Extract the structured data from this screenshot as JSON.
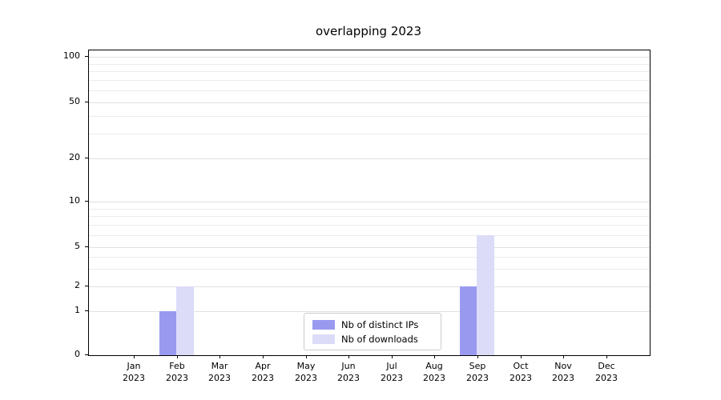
{
  "chart_data": {
    "type": "bar",
    "title": "overlapping 2023",
    "bar_style": "overlapping",
    "months": [
      "Jan",
      "Feb",
      "Mar",
      "Apr",
      "May",
      "Jun",
      "Jul",
      "Aug",
      "Sep",
      "Oct",
      "Nov",
      "Dec"
    ],
    "year": "2023",
    "categories": [
      "Jan 2023",
      "Feb 2023",
      "Mar 2023",
      "Apr 2023",
      "May 2023",
      "Jun 2023",
      "Jul 2023",
      "Aug 2023",
      "Sep 2023",
      "Oct 2023",
      "Nov 2023",
      "Dec 2023"
    ],
    "series": [
      {
        "name": "Nb of distinct IPs",
        "color": "#9a99f0",
        "values": [
          0,
          1,
          0,
          0,
          0,
          0,
          0,
          0,
          2,
          0,
          0,
          0
        ]
      },
      {
        "name": "Nb of downloads",
        "color": "#dcdcf8",
        "values": [
          0,
          2,
          0,
          0,
          0,
          0,
          0,
          0,
          6,
          0,
          0,
          0
        ]
      }
    ],
    "yscale": "symlog",
    "y_ticks": [
      0,
      1,
      2,
      5,
      10,
      20,
      50,
      100
    ],
    "ylim": [
      0,
      100
    ],
    "grid": true,
    "legend_position": "lower center",
    "legend": {
      "items": [
        {
          "label": "Nb of distinct IPs",
          "color": "#9a99f0"
        },
        {
          "label": "Nb of downloads",
          "color": "#dcdcf8"
        }
      ]
    }
  }
}
